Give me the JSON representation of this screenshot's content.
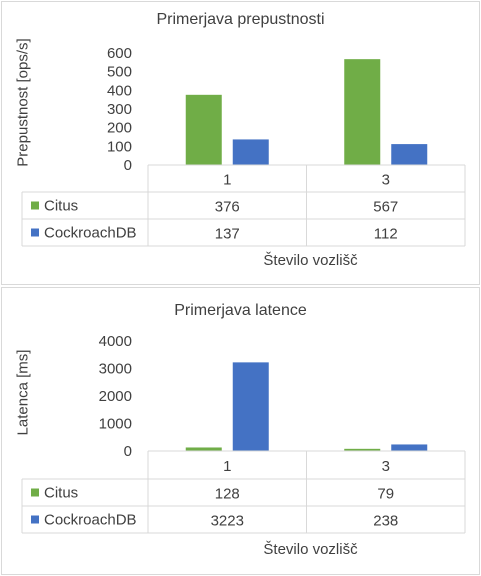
{
  "chart_data": [
    {
      "type": "bar",
      "title": "Primerjava prepustnosti",
      "ylabel": "Prepustnost [ops/s]",
      "xlabel": "Število vozlišč",
      "categories": [
        "1",
        "3"
      ],
      "ylim": [
        0,
        600
      ],
      "yticks": [
        "0",
        "100",
        "200",
        "300",
        "400",
        "500",
        "600"
      ],
      "legend_placement": "data-table",
      "grid": false,
      "series": [
        {
          "name": "Citus",
          "color": "#70ad47",
          "values": [
            376,
            567
          ],
          "labels": [
            "376",
            "567"
          ]
        },
        {
          "name": "CockroachDB",
          "color": "#4472c4",
          "values": [
            137,
            112
          ],
          "labels": [
            "137",
            "112"
          ]
        }
      ]
    },
    {
      "type": "bar",
      "title": "Primerjava latence",
      "ylabel": "Latenca [ms]",
      "xlabel": "Število vozlišč",
      "categories": [
        "1",
        "3"
      ],
      "ylim": [
        0,
        4000
      ],
      "yticks": [
        "0",
        "1000",
        "2000",
        "3000",
        "4000"
      ],
      "legend_placement": "data-table",
      "grid": false,
      "series": [
        {
          "name": "Citus",
          "color": "#70ad47",
          "values": [
            128,
            79
          ],
          "labels": [
            "128",
            "79"
          ]
        },
        {
          "name": "CockroachDB",
          "color": "#4472c4",
          "values": [
            3223,
            238
          ],
          "labels": [
            "3223",
            "238"
          ]
        }
      ]
    }
  ]
}
